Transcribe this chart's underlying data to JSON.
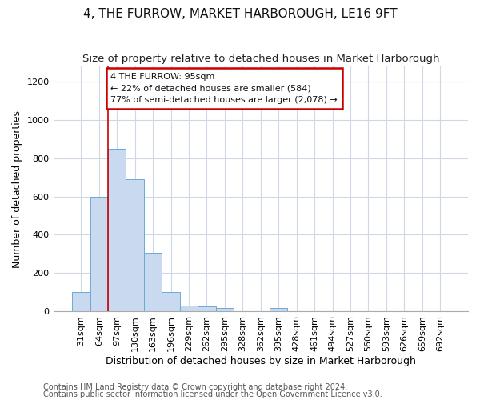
{
  "title": "4, THE FURROW, MARKET HARBOROUGH, LE16 9FT",
  "subtitle": "Size of property relative to detached houses in Market Harborough",
  "xlabel": "Distribution of detached houses by size in Market Harborough",
  "ylabel": "Number of detached properties",
  "footnote1": "Contains HM Land Registry data © Crown copyright and database right 2024.",
  "footnote2": "Contains public sector information licensed under the Open Government Licence v3.0.",
  "bar_labels": [
    "31sqm",
    "64sqm",
    "97sqm",
    "130sqm",
    "163sqm",
    "196sqm",
    "229sqm",
    "262sqm",
    "295sqm",
    "328sqm",
    "362sqm",
    "395sqm",
    "428sqm",
    "461sqm",
    "494sqm",
    "527sqm",
    "560sqm",
    "593sqm",
    "626sqm",
    "659sqm",
    "692sqm"
  ],
  "bar_values": [
    100,
    600,
    850,
    690,
    305,
    100,
    30,
    25,
    15,
    0,
    0,
    15,
    0,
    0,
    0,
    0,
    0,
    0,
    0,
    0,
    0
  ],
  "bar_color": "#c8d9f0",
  "bar_edge_color": "#6aaad4",
  "highlight_bar_index": 2,
  "red_line_color": "#cc0000",
  "annotation_text": "4 THE FURROW: 95sqm\n← 22% of detached houses are smaller (584)\n77% of semi-detached houses are larger (2,078) →",
  "annotation_box_color": "#cc0000",
  "ylim": [
    0,
    1280
  ],
  "yticks": [
    0,
    200,
    400,
    600,
    800,
    1000,
    1200
  ],
  "title_fontsize": 11,
  "subtitle_fontsize": 9.5,
  "xlabel_fontsize": 9,
  "ylabel_fontsize": 9,
  "tick_fontsize": 8,
  "annotation_fontsize": 8,
  "footnote_fontsize": 7,
  "bg_color": "#ffffff",
  "plot_bg_color": "#ffffff",
  "grid_color": "#d0d8e8"
}
